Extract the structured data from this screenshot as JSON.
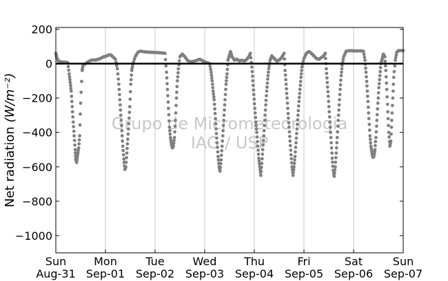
{
  "chart_data": {
    "type": "scatter",
    "ylabel": "Net radiation",
    "ylabel_units": "(W/m⁻²)",
    "ylim": [
      -1100,
      210
    ],
    "yticks": [
      200,
      0,
      -200,
      -400,
      -600,
      -800,
      -1000
    ],
    "ytick_labels": [
      "200",
      "0",
      "−200",
      "−400",
      "−600",
      "−800",
      "−1000"
    ],
    "xlim": [
      0,
      7
    ],
    "xticks": [
      {
        "day": "Sun",
        "date": "Aug-31",
        "x": 0
      },
      {
        "day": "Mon",
        "date": "Sep-01",
        "x": 1
      },
      {
        "day": "Tue",
        "date": "Sep-02",
        "x": 2
      },
      {
        "day": "Wed",
        "date": "Sep-03",
        "x": 3
      },
      {
        "day": "Thu",
        "date": "Sep-04",
        "x": 4
      },
      {
        "day": "Fri",
        "date": "Sep-05",
        "x": 5
      },
      {
        "day": "Sat",
        "date": "Sep-06",
        "x": 6
      },
      {
        "day": "Sun",
        "date": "Sep-07",
        "x": 7
      }
    ],
    "grid": "vertical",
    "reference_line": 0,
    "marker_color": "#808080",
    "watermark": [
      "Grupo de Micrometeorologia",
      "IAG / USP"
    ],
    "series": [
      {
        "points": [
          [
            0.0,
            60
          ],
          [
            0.02,
            35
          ],
          [
            0.05,
            15
          ],
          [
            0.1,
            10
          ],
          [
            0.15,
            8
          ],
          [
            0.2,
            8
          ],
          [
            0.24,
            5
          ],
          [
            0.27,
            -60
          ],
          [
            0.29,
            -110
          ],
          [
            0.31,
            -160
          ],
          [
            0.33,
            -250
          ],
          [
            0.35,
            -340
          ],
          [
            0.37,
            -420
          ],
          [
            0.39,
            -500
          ],
          [
            0.4,
            -555
          ],
          [
            0.42,
            -575
          ],
          [
            0.44,
            -530
          ],
          [
            0.46,
            -490
          ],
          [
            0.48,
            -420
          ],
          [
            0.5,
            -230
          ],
          [
            0.53,
            -40
          ],
          [
            0.55,
            -10
          ],
          [
            0.6,
            0
          ],
          [
            0.65,
            10
          ],
          [
            0.7,
            18
          ],
          [
            0.75,
            22
          ],
          [
            0.8,
            20
          ],
          [
            0.85,
            25
          ],
          [
            0.9,
            30
          ],
          [
            0.95,
            38
          ],
          [
            1.0,
            42
          ],
          [
            1.05,
            48
          ],
          [
            1.1,
            52
          ],
          [
            1.15,
            40
          ],
          [
            1.2,
            25
          ],
          [
            1.24,
            -30
          ],
          [
            1.27,
            -120
          ],
          [
            1.29,
            -210
          ],
          [
            1.31,
            -300
          ],
          [
            1.33,
            -390
          ],
          [
            1.35,
            -480
          ],
          [
            1.37,
            -555
          ],
          [
            1.39,
            -615
          ],
          [
            1.41,
            -600
          ],
          [
            1.43,
            -520
          ],
          [
            1.45,
            -440
          ],
          [
            1.47,
            -350
          ],
          [
            1.49,
            -250
          ],
          [
            1.51,
            -120
          ],
          [
            1.53,
            -40
          ],
          [
            1.55,
            -5
          ],
          [
            1.6,
            40
          ],
          [
            1.65,
            65
          ],
          [
            1.7,
            72
          ],
          [
            1.75,
            70
          ],
          [
            1.8,
            68
          ],
          [
            1.85,
            67
          ],
          [
            1.9,
            66
          ],
          [
            1.95,
            65
          ],
          [
            2.0,
            65
          ],
          [
            2.05,
            64
          ],
          [
            2.1,
            63
          ],
          [
            2.15,
            62
          ],
          [
            2.2,
            60
          ],
          [
            2.23,
            -50
          ],
          [
            2.25,
            -150
          ],
          [
            2.27,
            -260
          ],
          [
            2.29,
            -370
          ],
          [
            2.31,
            -430
          ],
          [
            2.33,
            -470
          ],
          [
            2.35,
            -490
          ],
          [
            2.37,
            -480
          ],
          [
            2.39,
            -430
          ],
          [
            2.41,
            -330
          ],
          [
            2.43,
            -200
          ],
          [
            2.45,
            -100
          ],
          [
            2.47,
            -30
          ],
          [
            2.5,
            40
          ],
          [
            2.55,
            55
          ],
          [
            2.6,
            40
          ],
          [
            2.65,
            20
          ],
          [
            2.7,
            10
          ],
          [
            2.75,
            12
          ],
          [
            2.8,
            15
          ],
          [
            2.85,
            20
          ],
          [
            2.9,
            25
          ],
          [
            2.95,
            18
          ],
          [
            3.0,
            10
          ],
          [
            3.05,
            5
          ],
          [
            3.1,
            0
          ],
          [
            3.13,
            -50
          ],
          [
            3.15,
            -100
          ],
          [
            3.17,
            -160
          ],
          [
            3.19,
            -210
          ],
          [
            3.21,
            -290
          ],
          [
            3.23,
            -380
          ],
          [
            3.25,
            -460
          ],
          [
            3.27,
            -540
          ],
          [
            3.29,
            -600
          ],
          [
            3.31,
            -625
          ],
          [
            3.33,
            -560
          ],
          [
            3.35,
            -480
          ],
          [
            3.37,
            -390
          ],
          [
            3.39,
            -300
          ],
          [
            3.41,
            -210
          ],
          [
            3.43,
            -120
          ],
          [
            3.45,
            -60
          ],
          [
            3.47,
            20
          ],
          [
            3.5,
            50
          ],
          [
            3.52,
            70
          ],
          [
            3.55,
            40
          ],
          [
            3.6,
            20
          ],
          [
            3.65,
            25
          ],
          [
            3.7,
            15
          ],
          [
            3.75,
            20
          ],
          [
            3.8,
            15
          ],
          [
            3.85,
            25
          ],
          [
            3.9,
            45
          ],
          [
            3.92,
            60
          ],
          [
            3.95,
            -20
          ],
          [
            3.97,
            -100
          ],
          [
            3.99,
            -180
          ],
          [
            4.01,
            -260
          ],
          [
            4.03,
            -340
          ],
          [
            4.05,
            -400
          ],
          [
            4.07,
            -480
          ],
          [
            4.09,
            -550
          ],
          [
            4.11,
            -600
          ],
          [
            4.13,
            -650
          ],
          [
            4.15,
            -580
          ],
          [
            4.17,
            -500
          ],
          [
            4.19,
            -420
          ],
          [
            4.21,
            -330
          ],
          [
            4.23,
            -240
          ],
          [
            4.25,
            -160
          ],
          [
            4.27,
            -90
          ],
          [
            4.29,
            -30
          ],
          [
            4.32,
            20
          ],
          [
            4.35,
            45
          ],
          [
            4.4,
            30
          ],
          [
            4.45,
            15
          ],
          [
            4.5,
            20
          ],
          [
            4.55,
            35
          ],
          [
            4.6,
            60
          ],
          [
            4.62,
            -40
          ],
          [
            4.64,
            -120
          ],
          [
            4.66,
            -200
          ],
          [
            4.68,
            -290
          ],
          [
            4.7,
            -370
          ],
          [
            4.72,
            -450
          ],
          [
            4.74,
            -530
          ],
          [
            4.76,
            -600
          ],
          [
            4.78,
            -650
          ],
          [
            4.8,
            -600
          ],
          [
            4.82,
            -540
          ],
          [
            4.84,
            -460
          ],
          [
            4.86,
            -380
          ],
          [
            4.88,
            -300
          ],
          [
            4.9,
            -220
          ],
          [
            4.92,
            -150
          ],
          [
            4.94,
            -80
          ],
          [
            4.96,
            -20
          ],
          [
            5.0,
            30
          ],
          [
            5.05,
            60
          ],
          [
            5.1,
            70
          ],
          [
            5.15,
            60
          ],
          [
            5.2,
            45
          ],
          [
            5.25,
            30
          ],
          [
            5.3,
            25
          ],
          [
            5.35,
            35
          ],
          [
            5.4,
            45
          ],
          [
            5.43,
            60
          ],
          [
            5.45,
            -30
          ],
          [
            5.47,
            -110
          ],
          [
            5.49,
            -190
          ],
          [
            5.51,
            -280
          ],
          [
            5.53,
            -370
          ],
          [
            5.55,
            -460
          ],
          [
            5.57,
            -550
          ],
          [
            5.59,
            -620
          ],
          [
            5.61,
            -655
          ],
          [
            5.63,
            -600
          ],
          [
            5.65,
            -520
          ],
          [
            5.67,
            -430
          ],
          [
            5.69,
            -330
          ],
          [
            5.71,
            -240
          ],
          [
            5.73,
            -150
          ],
          [
            5.75,
            -70
          ],
          [
            5.77,
            -10
          ],
          [
            5.8,
            40
          ],
          [
            5.85,
            72
          ],
          [
            5.9,
            75
          ],
          [
            5.95,
            75
          ],
          [
            6.0,
            74
          ],
          [
            6.05,
            74
          ],
          [
            6.1,
            74
          ],
          [
            6.15,
            74
          ],
          [
            6.2,
            72
          ],
          [
            6.23,
            20
          ],
          [
            6.25,
            -50
          ],
          [
            6.27,
            -130
          ],
          [
            6.29,
            -220
          ],
          [
            6.31,
            -320
          ],
          [
            6.33,
            -420
          ],
          [
            6.35,
            -480
          ],
          [
            6.37,
            -520
          ],
          [
            6.39,
            -545
          ],
          [
            6.41,
            -540
          ],
          [
            6.43,
            -500
          ],
          [
            6.45,
            -430
          ],
          [
            6.47,
            -330
          ],
          [
            6.49,
            -230
          ],
          [
            6.51,
            -140
          ],
          [
            6.53,
            -70
          ],
          [
            6.55,
            0
          ],
          [
            6.58,
            30
          ],
          [
            6.6,
            55
          ],
          [
            6.63,
            40
          ],
          [
            6.65,
            -40
          ],
          [
            6.67,
            -150
          ],
          [
            6.69,
            -280
          ],
          [
            6.71,
            -400
          ],
          [
            6.73,
            -480
          ],
          [
            6.75,
            -450
          ],
          [
            6.77,
            -330
          ],
          [
            6.79,
            -200
          ],
          [
            6.81,
            -80
          ],
          [
            6.84,
            20
          ],
          [
            6.87,
            65
          ],
          [
            6.9,
            75
          ],
          [
            6.95,
            76
          ],
          [
            7.0,
            76
          ]
        ]
      }
    ]
  }
}
